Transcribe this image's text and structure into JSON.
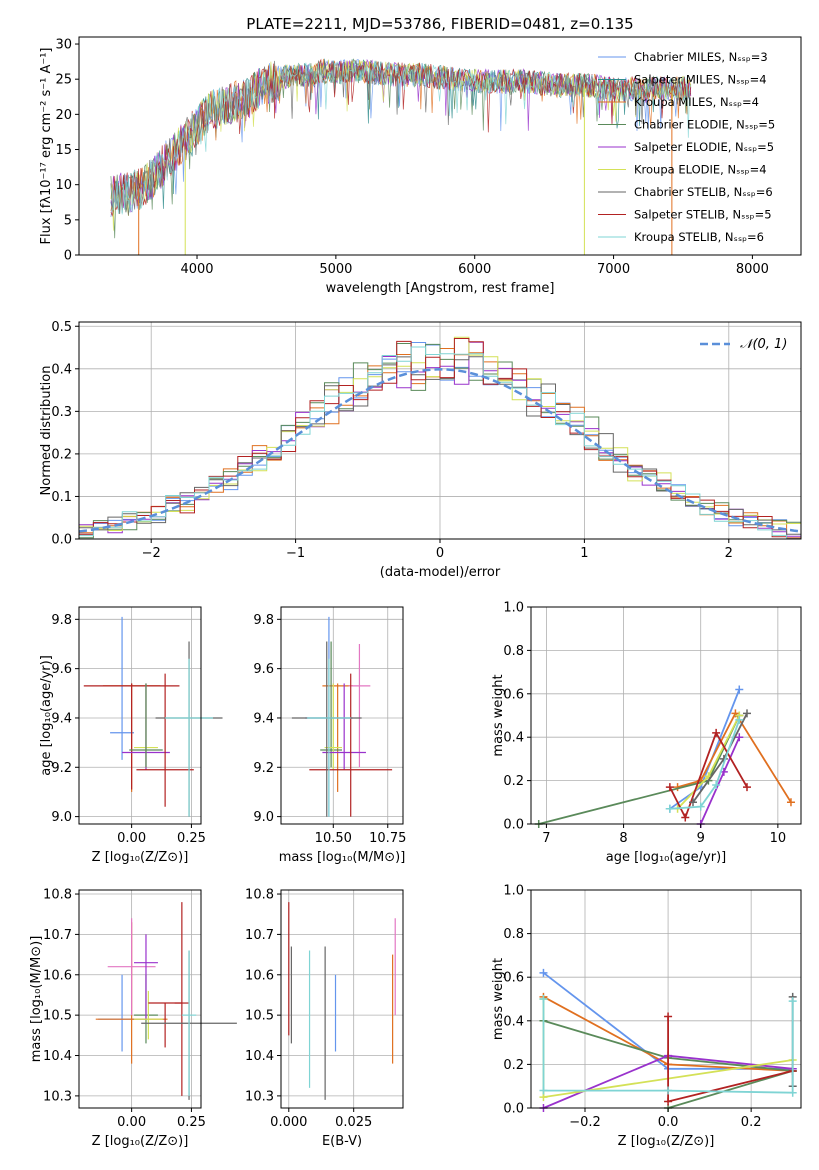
{
  "figure_title": "PLATE=2211, MJD=53786, FIBERID=0481, z=0.135",
  "chart_data": [
    {
      "id": "spectrum",
      "type": "line",
      "xlabel": "wavelength [Angstrom, rest frame]",
      "ylabel": "Flux [fλ10⁻¹⁷ erg cm⁻² s⁻¹ A⁻¹]",
      "xlim": [
        3150,
        8350
      ],
      "ylim": [
        0,
        31
      ],
      "xticks": [
        4000,
        5000,
        6000,
        7000,
        8000
      ],
      "yticks": [
        0,
        5,
        10,
        15,
        20,
        25,
        30
      ],
      "grid": false,
      "legend_position": "top-right",
      "series": [
        {
          "name": "Chabrier MILES, N_SSP=3",
          "color": "#6495ed"
        },
        {
          "name": "Salpeter MILES, N_SSP=4",
          "color": "#2e8b8b"
        },
        {
          "name": "Kroupa MILES, N_SSP=4",
          "color": "#e07020"
        },
        {
          "name": "Chabrier ELODIE, N_SSP=5",
          "color": "#5a8a5a"
        },
        {
          "name": "Salpeter ELODIE, N_SSP=5",
          "color": "#9932cc"
        },
        {
          "name": "Kroupa ELODIE, N_SSP=4",
          "color": "#d4e157"
        },
        {
          "name": "Chabrier STELIB, N_SSP=6",
          "color": "#666666"
        },
        {
          "name": "Salpeter STELIB, N_SSP=5",
          "color": "#b22222"
        },
        {
          "name": "Kroupa STELIB, N_SSP=6",
          "color": "#7fd4d4"
        }
      ],
      "envelope": {
        "x": [
          3380,
          3500,
          3600,
          3700,
          3800,
          3900,
          4000,
          4100,
          4200,
          4300,
          4400,
          4500,
          4600,
          4700,
          4800,
          4900,
          5000,
          5200,
          5400,
          5600,
          5800,
          6000,
          6200,
          6400,
          6600,
          6800,
          7000,
          7200,
          7400,
          7550
        ],
        "y": [
          9,
          9.5,
          10,
          12,
          14.5,
          16.5,
          19,
          21,
          22,
          22.5,
          23.5,
          25,
          25.5,
          26,
          26,
          26.5,
          26.5,
          26.5,
          26,
          26,
          25.5,
          25,
          25,
          25,
          24.5,
          24.5,
          24,
          24,
          24,
          24
        ]
      }
    },
    {
      "id": "residuals",
      "type": "line",
      "xlabel": "(data-model)/error",
      "ylabel": "Normed distribution",
      "xlim": [
        -2.5,
        2.5
      ],
      "ylim": [
        0,
        0.51
      ],
      "xticks": [
        -2,
        -1,
        0,
        1,
        2
      ],
      "yticks": [
        0.0,
        0.1,
        0.2,
        0.3,
        0.4,
        0.5
      ],
      "grid": true,
      "legend_position": "top-right",
      "legend": "𝒩(0, 1)",
      "gaussian_color": "#5a8fd9"
    },
    {
      "id": "age-vs-Z",
      "type": "scatter",
      "xlabel": "Z [log₁₀(Z/Z⊙)]",
      "ylabel": "age  [log₁₀(age/yr)]",
      "xlim": [
        -0.22,
        0.29
      ],
      "ylim": [
        8.97,
        9.85
      ],
      "xticks": [
        0.0,
        0.25
      ],
      "yticks": [
        9.0,
        9.2,
        9.4,
        9.6,
        9.8
      ],
      "grid": true,
      "points": [
        {
          "x": -0.04,
          "y": 9.34,
          "xerr": 0.05,
          "ylo": 9.23,
          "yhi": 9.81,
          "color": "#6495ed"
        },
        {
          "x": 0.0,
          "y": 9.53,
          "xerr": 0.12,
          "ylo": 9.1,
          "yhi": 9.54,
          "color": "#e07020"
        },
        {
          "x": 0.0,
          "y": 9.53,
          "xerr": 0.2,
          "ylo": 9.11,
          "yhi": 9.54,
          "color": "#b22222"
        },
        {
          "x": 0.06,
          "y": 9.28,
          "xerr": 0.05,
          "ylo": 9.19,
          "yhi": 9.54,
          "color": "#d4e157"
        },
        {
          "x": 0.06,
          "y": 9.26,
          "xerr": 0.1,
          "ylo": 9.19,
          "yhi": 9.54,
          "color": "#9932cc"
        },
        {
          "x": 0.06,
          "y": 9.27,
          "xerr": 0.07,
          "ylo": 9.2,
          "yhi": 9.54,
          "color": "#5a8a5a"
        },
        {
          "x": 0.14,
          "y": 9.19,
          "xerr": 0.12,
          "ylo": 9.04,
          "yhi": 9.58,
          "color": "#b22222"
        },
        {
          "x": 0.24,
          "y": 9.4,
          "xerr": 0.14,
          "ylo": 9.0,
          "yhi": 9.71,
          "color": "#666666"
        },
        {
          "x": 0.24,
          "y": 9.4,
          "xerr": 0.1,
          "ylo": 9.0,
          "yhi": 9.64,
          "color": "#7fd4d4"
        }
      ]
    },
    {
      "id": "age-vs-mass",
      "type": "scatter",
      "xlabel": "mass [log₁₀(M/M⊙)]",
      "ylabel": "",
      "xlim": [
        10.26,
        10.82
      ],
      "ylim": [
        8.97,
        9.85
      ],
      "xticks": [
        10.5,
        10.75
      ],
      "yticks": [
        9.0,
        9.2,
        9.4,
        9.6,
        9.8
      ],
      "grid": true,
      "points": [
        {
          "x": 10.48,
          "y": 9.4,
          "xerr": 0.11,
          "ylo": 9.0,
          "yhi": 9.81,
          "color": "#6495ed"
        },
        {
          "x": 10.52,
          "y": 9.53,
          "xerr": 0.07,
          "ylo": 9.1,
          "yhi": 9.54,
          "color": "#e07020"
        },
        {
          "x": 10.62,
          "y": 9.53,
          "xerr": 0.05,
          "ylo": 9.2,
          "yhi": 9.7,
          "color": "#e377c2"
        },
        {
          "x": 10.49,
          "y": 9.27,
          "xerr": 0.05,
          "ylo": 9.2,
          "yhi": 9.71,
          "color": "#5a8a5a"
        },
        {
          "x": 10.5,
          "y": 9.28,
          "xerr": 0.04,
          "ylo": 9.19,
          "yhi": 9.54,
          "color": "#d4e157"
        },
        {
          "x": 10.55,
          "y": 9.26,
          "xerr": 0.1,
          "ylo": 9.19,
          "yhi": 9.54,
          "color": "#9932cc"
        },
        {
          "x": 10.58,
          "y": 9.19,
          "xerr": 0.19,
          "ylo": 9.0,
          "yhi": 9.58,
          "color": "#b22222"
        },
        {
          "x": 10.47,
          "y": 9.4,
          "xerr": 0.16,
          "ylo": 9.0,
          "yhi": 9.71,
          "color": "#666666"
        },
        {
          "x": 10.48,
          "y": 9.4,
          "xerr": 0.1,
          "ylo": 9.0,
          "yhi": 9.64,
          "color": "#7fd4d4"
        }
      ]
    },
    {
      "id": "mass-weight-vs-age",
      "type": "line",
      "xlabel": "age  [log₁₀(age/yr)]",
      "ylabel": "mass weight",
      "xlim": [
        6.8,
        10.3
      ],
      "ylim": [
        0,
        1.0
      ],
      "xticks": [
        7,
        8,
        9,
        10
      ],
      "yticks": [
        0.0,
        0.2,
        0.4,
        0.6,
        0.8,
        1.0
      ],
      "grid": true,
      "series": [
        {
          "color": "#6495ed",
          "points": [
            [
              8.6,
              0.07
            ],
            [
              9.0,
              0.17
            ],
            [
              9.5,
              0.62
            ]
          ]
        },
        {
          "color": "#e07020",
          "points": [
            [
              8.7,
              0.17
            ],
            [
              9.0,
              0.2
            ],
            [
              9.45,
              0.51
            ],
            [
              10.17,
              0.1
            ]
          ]
        },
        {
          "color": "#5a8a5a",
          "points": [
            [
              6.9,
              0.0
            ],
            [
              9.1,
              0.2
            ],
            [
              9.5,
              0.5
            ]
          ]
        },
        {
          "color": "#9932cc",
          "points": [
            [
              9.0,
              0.0
            ],
            [
              9.3,
              0.24
            ],
            [
              9.5,
              0.4
            ]
          ]
        },
        {
          "color": "#d4e157",
          "points": [
            [
              8.7,
              0.07
            ],
            [
              9.1,
              0.22
            ],
            [
              9.5,
              0.5
            ]
          ]
        },
        {
          "color": "#b22222",
          "points": [
            [
              8.6,
              0.17
            ],
            [
              8.8,
              0.03
            ],
            [
              9.2,
              0.42
            ],
            [
              9.6,
              0.17
            ]
          ]
        },
        {
          "color": "#666666",
          "points": [
            [
              8.9,
              0.1
            ],
            [
              9.3,
              0.3
            ],
            [
              9.6,
              0.51
            ]
          ]
        },
        {
          "color": "#7fd4d4",
          "points": [
            [
              8.6,
              0.07
            ],
            [
              9.0,
              0.08
            ],
            [
              9.2,
              0.18
            ],
            [
              9.5,
              0.48
            ]
          ]
        }
      ]
    },
    {
      "id": "mass-vs-Z",
      "type": "scatter",
      "xlabel": "Z [log₁₀(Z/Z⊙)]",
      "ylabel": "mass [log₁₀(M/M⊙)]",
      "xlim": [
        -0.22,
        0.29
      ],
      "ylim": [
        10.27,
        10.81
      ],
      "xticks": [
        0.0,
        0.25
      ],
      "yticks": [
        10.3,
        10.4,
        10.5,
        10.6,
        10.7,
        10.8
      ],
      "grid": true,
      "points": [
        {
          "x": -0.04,
          "y": 10.49,
          "xerr": 0.1,
          "ylo": 10.41,
          "yhi": 10.6,
          "color": "#6495ed"
        },
        {
          "x": 0.0,
          "y": 10.49,
          "xerr": 0.15,
          "ylo": 10.38,
          "yhi": 10.73,
          "color": "#e07020"
        },
        {
          "x": 0.0,
          "y": 10.62,
          "xerr": 0.1,
          "ylo": 10.5,
          "yhi": 10.74,
          "color": "#e377c2"
        },
        {
          "x": 0.06,
          "y": 10.5,
          "xerr": 0.05,
          "ylo": 10.43,
          "yhi": 10.6,
          "color": "#5a8a5a"
        },
        {
          "x": 0.06,
          "y": 10.63,
          "xerr": 0.05,
          "ylo": 10.49,
          "yhi": 10.7,
          "color": "#9932cc"
        },
        {
          "x": 0.07,
          "y": 10.49,
          "xerr": 0.06,
          "ylo": 10.44,
          "yhi": 10.56,
          "color": "#d4e157"
        },
        {
          "x": 0.14,
          "y": 10.53,
          "xerr": 0.07,
          "ylo": 10.42,
          "yhi": 10.53,
          "color": "#b22222"
        },
        {
          "x": 0.21,
          "y": 10.53,
          "xerr": 0.03,
          "ylo": 10.3,
          "yhi": 10.78,
          "color": "#b22222"
        },
        {
          "x": 0.24,
          "y": 10.48,
          "xerr": 0.2,
          "ylo": 10.29,
          "yhi": 10.66,
          "color": "#666666"
        },
        {
          "x": 0.24,
          "y": 10.5,
          "xerr": 0.03,
          "ylo": 10.3,
          "yhi": 10.66,
          "color": "#7fd4d4"
        }
      ]
    },
    {
      "id": "mass-vs-ebv",
      "type": "scatter",
      "xlabel": "E(B-V)",
      "ylabel": "",
      "xlim": [
        -0.003,
        0.044
      ],
      "ylim": [
        10.27,
        10.81
      ],
      "xticks": [
        0.0,
        0.025
      ],
      "yticks": [
        10.3,
        10.4,
        10.5,
        10.6,
        10.7,
        10.8
      ],
      "grid": true,
      "points": [
        {
          "x": 0.0,
          "ylo": 10.45,
          "yhi": 10.78,
          "color": "#b22222"
        },
        {
          "x": 0.001,
          "ylo": 10.43,
          "yhi": 10.67,
          "color": "#666666"
        },
        {
          "x": 0.008,
          "ylo": 10.32,
          "yhi": 10.66,
          "color": "#7fd4d4"
        },
        {
          "x": 0.014,
          "ylo": 10.29,
          "yhi": 10.67,
          "color": "#666666"
        },
        {
          "x": 0.018,
          "ylo": 10.41,
          "yhi": 10.6,
          "color": "#6495ed"
        },
        {
          "x": 0.04,
          "ylo": 10.38,
          "yhi": 10.65,
          "color": "#e07020"
        },
        {
          "x": 0.041,
          "ylo": 10.5,
          "yhi": 10.74,
          "color": "#e377c2"
        }
      ]
    },
    {
      "id": "mass-weight-vs-Z",
      "type": "line",
      "xlabel": "Z [log₁₀(Z/Z⊙)]",
      "ylabel": "mass weight",
      "xlim": [
        -0.33,
        0.32
      ],
      "ylim": [
        0,
        1.0
      ],
      "xticks": [
        -0.2,
        0.0,
        0.2
      ],
      "yticks": [
        0.0,
        0.2,
        0.4,
        0.6,
        0.8,
        1.0
      ],
      "grid": true,
      "series": [
        {
          "color": "#6495ed",
          "points": [
            [
              -0.3,
              0.62
            ],
            [
              0.0,
              0.18
            ],
            [
              0.3,
              0.18
            ]
          ]
        },
        {
          "color": "#e07020",
          "points": [
            [
              -0.3,
              0.51
            ],
            [
              0.0,
              0.2
            ],
            [
              0.3,
              0.17
            ]
          ]
        },
        {
          "color": "#5a8a5a",
          "points": [
            [
              -0.3,
              0.4
            ],
            [
              0.0,
              0.23
            ],
            [
              0.3,
              0.17
            ],
            [
              0.0,
              0.0
            ],
            [
              0.3,
              0.17
            ]
          ]
        },
        {
          "color": "#9932cc",
          "points": [
            [
              -0.3,
              0.0
            ],
            [
              0.0,
              0.24
            ],
            [
              0.3,
              0.18
            ]
          ]
        },
        {
          "color": "#d4e157",
          "points": [
            [
              -0.3,
              0.5
            ],
            [
              -0.3,
              0.05
            ],
            [
              0.3,
              0.22
            ]
          ]
        },
        {
          "color": "#b22222",
          "points": [
            [
              0.0,
              0.42
            ],
            [
              0.0,
              0.03
            ],
            [
              0.3,
              0.17
            ]
          ]
        },
        {
          "color": "#666666",
          "points": [
            [
              0.3,
              0.51
            ],
            [
              0.3,
              0.1
            ]
          ]
        },
        {
          "color": "#7fd4d4",
          "points": [
            [
              -0.3,
              0.5
            ],
            [
              -0.3,
              0.08
            ],
            [
              0.0,
              0.08
            ],
            [
              0.3,
              0.07
            ],
            [
              0.3,
              0.49
            ]
          ]
        }
      ]
    }
  ]
}
